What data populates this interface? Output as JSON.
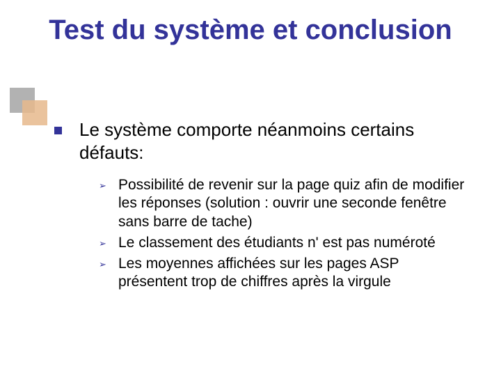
{
  "colors": {
    "title": "#333399",
    "bullet_square": "#333399",
    "bullet_arrow": "#333399",
    "body_text": "#000000",
    "accent_gray": "#b2b2b2",
    "accent_tan": "#e6b98c",
    "background": "#ffffff"
  },
  "typography": {
    "title_fontsize": 40,
    "level1_fontsize": 26,
    "level2_fontsize": 21,
    "title_weight": "bold"
  },
  "title": "Test du système et conclusion",
  "level1": {
    "text": "Le système comporte néanmoins certains défauts:"
  },
  "level2_items": [
    {
      "text": "Possibilité de revenir sur la page quiz afin de modifier les réponses (solution : ouvrir une seconde fenêtre sans barre de tache)"
    },
    {
      "text": "Le classement des étudiants n' est pas numéroté"
    },
    {
      "text": "Les moyennes affichées sur les pages ASP présentent trop de chiffres après la virgule"
    }
  ]
}
